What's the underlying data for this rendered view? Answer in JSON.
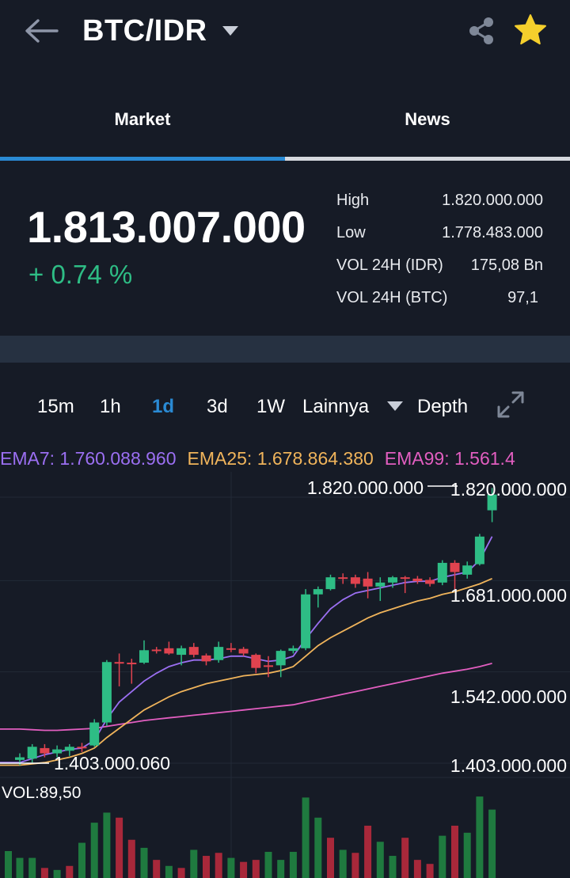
{
  "header": {
    "pair": "BTC/IDR"
  },
  "tabs": [
    {
      "label": "Market",
      "active": true
    },
    {
      "label": "News",
      "active": false
    }
  ],
  "ticker": {
    "last_price": "1.813.007.000",
    "change": "+ 0.74 %",
    "stats": [
      {
        "label": "High",
        "value": "1.820.000.000"
      },
      {
        "label": "Low",
        "value": "1.778.483.000"
      },
      {
        "label": "VOL 24H (IDR)",
        "value": "175,08 Bn"
      },
      {
        "label": "VOL 24H (BTC)",
        "value": "97,1"
      }
    ]
  },
  "intervals": {
    "items": [
      "15m",
      "1h",
      "1d",
      "3d",
      "1W"
    ],
    "active": "1d",
    "more_label": "Lainnya",
    "depth_label": "Depth"
  },
  "indicators": {
    "ema7": "EMA7: 1.760.088.960",
    "ema25": "EMA25: 1.678.864.380",
    "ema99": "EMA99: 1.561.4"
  },
  "colors": {
    "up": "#2ebd85",
    "down": "#e0434f",
    "accent": "#2a8ad4",
    "ema7": "#9b6ff2",
    "ema25": "#f0b45b",
    "ema99": "#e25ec0",
    "background": "#161b26"
  },
  "chart_data": {
    "type": "candlestick",
    "y_ticks": [
      "1.820.000.000",
      "1.681.000.000",
      "1.542.000.000",
      "1.403.000.000"
    ],
    "ylim": [
      1403000000,
      1820000000
    ],
    "high_marker": "1.820.000.000",
    "low_marker": "1.403.000.060",
    "candles": [
      {
        "o": 1408000000,
        "h": 1418000000,
        "l": 1400000000,
        "c": 1412000000
      },
      {
        "o": 1410000000,
        "h": 1432000000,
        "l": 1404000000,
        "c": 1428000000
      },
      {
        "o": 1426000000,
        "h": 1432000000,
        "l": 1412000000,
        "c": 1418000000
      },
      {
        "o": 1418000000,
        "h": 1430000000,
        "l": 1412000000,
        "c": 1424000000
      },
      {
        "o": 1422000000,
        "h": 1432000000,
        "l": 1414000000,
        "c": 1428000000
      },
      {
        "o": 1428000000,
        "h": 1434000000,
        "l": 1420000000,
        "c": 1426000000
      },
      {
        "o": 1430000000,
        "h": 1470000000,
        "l": 1428000000,
        "c": 1465000000
      },
      {
        "o": 1465000000,
        "h": 1560000000,
        "l": 1460000000,
        "c": 1557000000
      },
      {
        "o": 1557000000,
        "h": 1570000000,
        "l": 1520000000,
        "c": 1555000000
      },
      {
        "o": 1556000000,
        "h": 1562000000,
        "l": 1524000000,
        "c": 1554000000
      },
      {
        "o": 1556000000,
        "h": 1590000000,
        "l": 1554000000,
        "c": 1575000000
      },
      {
        "o": 1576000000,
        "h": 1580000000,
        "l": 1570000000,
        "c": 1574000000
      },
      {
        "o": 1578000000,
        "h": 1588000000,
        "l": 1568000000,
        "c": 1570000000
      },
      {
        "o": 1568000000,
        "h": 1582000000,
        "l": 1552000000,
        "c": 1578000000
      },
      {
        "o": 1580000000,
        "h": 1586000000,
        "l": 1564000000,
        "c": 1568000000
      },
      {
        "o": 1567000000,
        "h": 1570000000,
        "l": 1552000000,
        "c": 1558000000
      },
      {
        "o": 1560000000,
        "h": 1588000000,
        "l": 1556000000,
        "c": 1580000000
      },
      {
        "o": 1578000000,
        "h": 1586000000,
        "l": 1572000000,
        "c": 1576000000
      },
      {
        "o": 1577000000,
        "h": 1580000000,
        "l": 1566000000,
        "c": 1570000000
      },
      {
        "o": 1568000000,
        "h": 1570000000,
        "l": 1540000000,
        "c": 1548000000
      },
      {
        "o": 1552000000,
        "h": 1566000000,
        "l": 1534000000,
        "c": 1550000000
      },
      {
        "o": 1552000000,
        "h": 1576000000,
        "l": 1534000000,
        "c": 1574000000
      },
      {
        "o": 1574000000,
        "h": 1582000000,
        "l": 1570000000,
        "c": 1578000000
      },
      {
        "o": 1578000000,
        "h": 1668000000,
        "l": 1575000000,
        "c": 1660000000
      },
      {
        "o": 1660000000,
        "h": 1672000000,
        "l": 1640000000,
        "c": 1668000000
      },
      {
        "o": 1668000000,
        "h": 1690000000,
        "l": 1666000000,
        "c": 1686000000
      },
      {
        "o": 1686000000,
        "h": 1692000000,
        "l": 1676000000,
        "c": 1684000000
      },
      {
        "o": 1686000000,
        "h": 1690000000,
        "l": 1670000000,
        "c": 1676000000
      },
      {
        "o": 1684000000,
        "h": 1694000000,
        "l": 1654000000,
        "c": 1672000000
      },
      {
        "o": 1672000000,
        "h": 1686000000,
        "l": 1650000000,
        "c": 1678000000
      },
      {
        "o": 1678000000,
        "h": 1688000000,
        "l": 1670000000,
        "c": 1686000000
      },
      {
        "o": 1686000000,
        "h": 1688000000,
        "l": 1662000000,
        "c": 1684000000
      },
      {
        "o": 1684000000,
        "h": 1688000000,
        "l": 1676000000,
        "c": 1680000000
      },
      {
        "o": 1682000000,
        "h": 1686000000,
        "l": 1672000000,
        "c": 1676000000
      },
      {
        "o": 1678000000,
        "h": 1712000000,
        "l": 1674000000,
        "c": 1708000000
      },
      {
        "o": 1708000000,
        "h": 1712000000,
        "l": 1668000000,
        "c": 1694000000
      },
      {
        "o": 1690000000,
        "h": 1710000000,
        "l": 1684000000,
        "c": 1704000000
      },
      {
        "o": 1706000000,
        "h": 1752000000,
        "l": 1704000000,
        "c": 1748000000
      },
      {
        "o": 1788000000,
        "h": 1822000000,
        "l": 1770000000,
        "c": 1812000000
      }
    ],
    "ema7": [
      1404000000,
      1410000000,
      1416000000,
      1420000000,
      1424000000,
      1426000000,
      1438000000,
      1470000000,
      1496000000,
      1512000000,
      1528000000,
      1540000000,
      1550000000,
      1556000000,
      1560000000,
      1560000000,
      1562000000,
      1566000000,
      1566000000,
      1562000000,
      1558000000,
      1560000000,
      1566000000,
      1592000000,
      1616000000,
      1638000000,
      1652000000,
      1662000000,
      1666000000,
      1670000000,
      1674000000,
      1678000000,
      1680000000,
      1680000000,
      1686000000,
      1690000000,
      1694000000,
      1712000000,
      1748000000
    ],
    "ema25": [
      1400000000,
      1402000000,
      1404000000,
      1408000000,
      1412000000,
      1418000000,
      1426000000,
      1442000000,
      1456000000,
      1470000000,
      1484000000,
      1494000000,
      1504000000,
      1512000000,
      1518000000,
      1524000000,
      1528000000,
      1532000000,
      1536000000,
      1538000000,
      1540000000,
      1544000000,
      1550000000,
      1566000000,
      1582000000,
      1594000000,
      1604000000,
      1614000000,
      1624000000,
      1632000000,
      1638000000,
      1644000000,
      1650000000,
      1654000000,
      1660000000,
      1664000000,
      1670000000,
      1676000000,
      1684000000
    ],
    "ema99": [
      1455000000,
      1454000000,
      1453000000,
      1453000000,
      1454000000,
      1455000000,
      1456000000,
      1459000000,
      1462000000,
      1465000000,
      1468000000,
      1470000000,
      1472000000,
      1474000000,
      1476000000,
      1478000000,
      1480000000,
      1482000000,
      1484000000,
      1486000000,
      1488000000,
      1490000000,
      1492000000,
      1496000000,
      1500000000,
      1504000000,
      1508000000,
      1512000000,
      1516000000,
      1520000000,
      1524000000,
      1528000000,
      1532000000,
      1536000000,
      1540000000,
      1543000000,
      1546000000,
      1550000000,
      1555000000
    ],
    "volume": [
      {
        "v": 20,
        "up": true
      },
      {
        "v": 20,
        "up": true
      },
      {
        "v": 10,
        "up": false
      },
      {
        "v": 8,
        "up": true
      },
      {
        "v": 12,
        "up": false
      },
      {
        "v": 35,
        "up": true
      },
      {
        "v": 55,
        "up": true
      },
      {
        "v": 65,
        "up": true
      },
      {
        "v": 60,
        "up": false
      },
      {
        "v": 38,
        "up": false
      },
      {
        "v": 30,
        "up": true
      },
      {
        "v": 18,
        "up": false
      },
      {
        "v": 12,
        "up": true
      },
      {
        "v": 10,
        "up": false
      },
      {
        "v": 28,
        "up": true
      },
      {
        "v": 22,
        "up": false
      },
      {
        "v": 25,
        "up": false
      },
      {
        "v": 20,
        "up": true
      },
      {
        "v": 16,
        "up": false
      },
      {
        "v": 18,
        "up": false
      },
      {
        "v": 26,
        "up": true
      },
      {
        "v": 18,
        "up": true
      },
      {
        "v": 26,
        "up": true
      },
      {
        "v": 80,
        "up": true
      },
      {
        "v": 60,
        "up": true
      },
      {
        "v": 40,
        "up": false
      },
      {
        "v": 28,
        "up": true
      },
      {
        "v": 25,
        "up": false
      },
      {
        "v": 52,
        "up": false
      },
      {
        "v": 36,
        "up": true
      },
      {
        "v": 22,
        "up": true
      },
      {
        "v": 40,
        "up": false
      },
      {
        "v": 18,
        "up": false
      },
      {
        "v": 14,
        "up": false
      },
      {
        "v": 42,
        "up": true
      },
      {
        "v": 52,
        "up": false
      },
      {
        "v": 45,
        "up": true
      },
      {
        "v": 81,
        "up": true
      },
      {
        "v": 68,
        "up": true
      }
    ],
    "volume_label": "VOL:89,50"
  }
}
